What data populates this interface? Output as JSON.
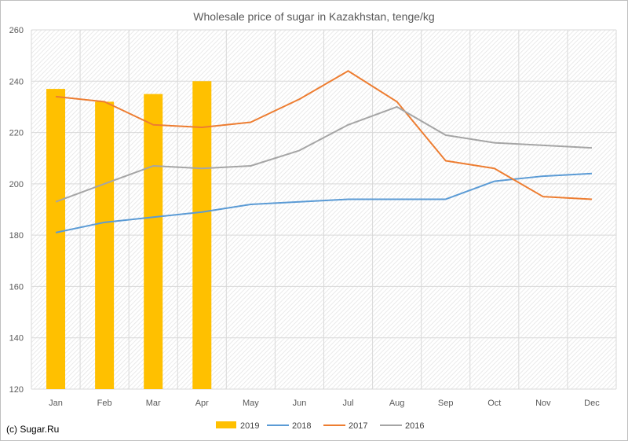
{
  "chart_data": {
    "type": "bar",
    "title": "Wholesale price of sugar in Kazakhstan, tenge/kg",
    "categories": [
      "Jan",
      "Feb",
      "Mar",
      "Apr",
      "May",
      "Jun",
      "Jul",
      "Aug",
      "Sep",
      "Oct",
      "Nov",
      "Dec"
    ],
    "ylim": [
      120,
      260
    ],
    "yticks": [
      120,
      140,
      160,
      180,
      200,
      220,
      240,
      260
    ],
    "grid": true,
    "legend_position": "bottom",
    "bar_series": [
      {
        "name": "2019",
        "color": "#FFC000",
        "values": [
          237,
          232,
          235,
          240
        ]
      }
    ],
    "line_series": [
      {
        "name": "2018",
        "color": "#5B9BD5",
        "values": [
          181,
          185,
          187,
          189,
          192,
          193,
          194,
          194,
          194,
          201,
          203,
          204
        ]
      },
      {
        "name": "2017",
        "color": "#ED7D31",
        "values": [
          234,
          232,
          223,
          222,
          224,
          233,
          244,
          232,
          209,
          206,
          195,
          194
        ]
      },
      {
        "name": "2016",
        "color": "#A5A5A5",
        "values": [
          193,
          200,
          207,
          206,
          207,
          213,
          223,
          230,
          219,
          216,
          215,
          214
        ]
      }
    ]
  },
  "footer": {
    "text": "(c) Sugar.Ru"
  }
}
